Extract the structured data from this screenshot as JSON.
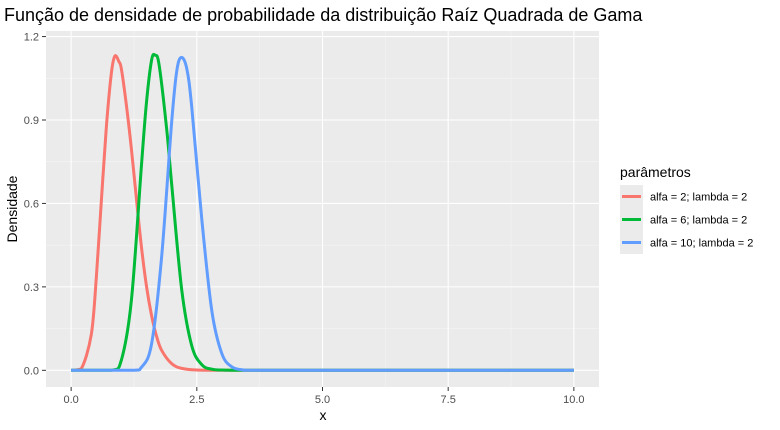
{
  "colors": {
    "panel": "#EBEBEB",
    "grid_major": "#FFFFFF",
    "grid_minor": "#F5F5F5",
    "tick": "#333333"
  },
  "chart_data": {
    "type": "line",
    "title": "Função de densidade de probabilidade da distribuição Raíz Quadrada de Gama",
    "xlabel": "x",
    "ylabel": "Densidade",
    "xlim": [
      -0.5,
      10.5
    ],
    "ylim": [
      -0.06,
      1.22
    ],
    "x_ticks": [
      0,
      2.5,
      5,
      7.5,
      10
    ],
    "x_tick_labels": [
      "0.0",
      "2.5",
      "5.0",
      "7.5",
      "10.0"
    ],
    "y_ticks": [
      0,
      0.3,
      0.6,
      0.9,
      1.2
    ],
    "y_tick_labels": [
      "0.0",
      "0.3",
      "0.6",
      "0.9",
      "1.2"
    ],
    "grid": true,
    "legend": {
      "title": "parâmetros",
      "position": "right"
    },
    "series": [
      {
        "name": "alfa = 2; lambda = 2",
        "color": "#F8766D",
        "x": [
          0.0,
          0.2,
          0.4,
          0.5,
          0.6,
          0.7,
          0.8,
          0.87,
          0.95,
          1.0,
          1.1,
          1.2,
          1.3,
          1.4,
          1.5,
          1.6,
          1.7,
          1.8,
          2.0,
          2.2,
          2.5,
          3.0,
          3.5,
          10.0
        ],
        "y": [
          0.0,
          0.005,
          0.128,
          0.331,
          0.606,
          0.874,
          1.068,
          1.13,
          1.11,
          1.083,
          0.952,
          0.794,
          0.614,
          0.441,
          0.301,
          0.197,
          0.122,
          0.072,
          0.024,
          0.007,
          0.001,
          0.0,
          0.0,
          0.0
        ]
      },
      {
        "name": "alfa = 6; lambda = 2",
        "color": "#00BA38",
        "x": [
          0.0,
          0.8,
          1.0,
          1.2,
          1.4,
          1.5,
          1.6,
          1.67,
          1.75,
          1.9,
          2.0,
          2.2,
          2.4,
          2.6,
          2.8,
          3.0,
          3.4,
          4.0,
          10.0
        ],
        "y": [
          0.0,
          0.0,
          0.037,
          0.254,
          0.74,
          0.966,
          1.115,
          1.133,
          1.098,
          0.868,
          0.669,
          0.289,
          0.088,
          0.02,
          0.004,
          0.001,
          0.0,
          0.0,
          0.0
        ]
      },
      {
        "name": "alfa = 10; lambda = 2",
        "color": "#619CFF",
        "x": [
          0.0,
          1.2,
          1.4,
          1.6,
          1.8,
          2.0,
          2.1,
          2.19,
          2.3,
          2.4,
          2.6,
          2.8,
          3.0,
          3.2,
          3.4,
          3.6,
          4.0,
          10.0
        ],
        "y": [
          0.0,
          0.0,
          0.011,
          0.095,
          0.408,
          0.893,
          1.075,
          1.125,
          1.085,
          0.945,
          0.541,
          0.212,
          0.059,
          0.012,
          0.002,
          0.0,
          0.0,
          0.0
        ]
      }
    ]
  }
}
